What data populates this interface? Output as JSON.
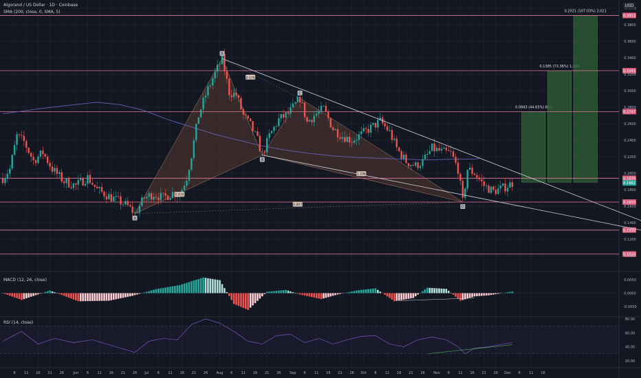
{
  "header": {
    "symbol": "Algorand / US Dollar · 1D · Coinbase",
    "sma": "SMA (200, close, 0, SMA, 5)",
    "currency": "USD"
  },
  "colors": {
    "background": "#131722",
    "candle_up": "#26a69a",
    "candle_down": "#ef5350",
    "level_line": "#e07a9a",
    "level_badge": "#d95f7e",
    "sma_line": "#6a5fb5",
    "pattern_fill": "#7a4a3a",
    "target_box": "#2e5a35",
    "macd_up": "#26a69a",
    "macd_down": "#ef5350",
    "macd_up_light": "#b2dfdb",
    "macd_down_light": "#ffcdd2",
    "rsi_line": "#7e57c2",
    "current_price_badge": "#26a69a"
  },
  "chart_data": [
    {
      "type": "candlestick",
      "pane": "price",
      "y_axis_ticks": [
        "0.4000",
        "0.3800",
        "0.3600",
        "0.3400",
        "0.3200",
        "0.3000",
        "0.2800",
        "0.2600",
        "0.2400",
        "0.2200",
        "0.2000",
        "0.1800",
        "0.1600",
        "0.1400",
        "0.1200",
        "0.1000"
      ],
      "ylim": [
        0.085,
        0.41
      ],
      "price_levels": [
        {
          "label": "0.3913",
          "value": 0.3913
        },
        {
          "label": "0.3243",
          "value": 0.3243
        },
        {
          "label": "0.2747",
          "value": 0.2747
        },
        {
          "label": "0.1939",
          "value": 0.1939
        },
        {
          "label": "0.1650",
          "value": 0.165
        },
        {
          "label": "0.1310",
          "value": 0.131
        },
        {
          "label": "0.1020",
          "value": 0.102
        }
      ],
      "current_price": "0.1882",
      "current_price_value": 0.1882,
      "harmonic_points": [
        {
          "label": "X",
          "day": 56,
          "price": 0.151
        },
        {
          "label": "A",
          "day": 93,
          "price": 0.339
        },
        {
          "label": "B",
          "day": 110,
          "price": 0.222
        },
        {
          "label": "C",
          "day": 126,
          "price": 0.291
        },
        {
          "label": "D",
          "day": 195,
          "price": 0.165
        }
      ],
      "ratio_labels": [
        {
          "label": "0.616",
          "day": 75,
          "price": 0.174
        },
        {
          "label": "0.576",
          "day": 105,
          "price": 0.316
        },
        {
          "label": "1.296",
          "day": 152,
          "price": 0.199
        },
        {
          "label": "0.807",
          "day": 125,
          "price": 0.162
        }
      ],
      "targets": [
        {
          "label": "0.0843 (44.65%) 843",
          "start_day": 220,
          "end_day": 230,
          "top": 0.2747,
          "bottom": 0.189
        },
        {
          "label": "0.1385 (73.36%) 1,385",
          "start_day": 231,
          "end_day": 241,
          "top": 0.3243,
          "bottom": 0.189
        },
        {
          "label": "0.2021 (107.03%) 2,021",
          "start_day": 242,
          "end_day": 252,
          "top": 0.3913,
          "bottom": 0.189
        }
      ],
      "trendlines": [
        {
          "from": {
            "day": 93,
            "price": 0.339
          },
          "to": {
            "day": 272,
            "price": 0.141
          }
        },
        {
          "from": {
            "day": 110,
            "price": 0.222
          },
          "to": {
            "day": 274,
            "price": 0.129
          }
        }
      ]
    },
    {
      "type": "histogram",
      "pane": "macd",
      "title": "MACD (12, 26, close)",
      "y_axis_ticks": [
        "0.0050",
        "0.0000",
        "-0.0050"
      ],
      "ylim": [
        -0.0085,
        0.0075
      ]
    },
    {
      "type": "line",
      "pane": "rsi",
      "title": "RSI (14, close)",
      "y_axis_ticks": [
        "80.00",
        "60.00",
        "40.00",
        "20.00"
      ],
      "ylim": [
        13,
        82
      ],
      "bands": [
        70,
        30
      ]
    }
  ],
  "x_axis": {
    "ticks": [
      {
        "label": "6",
        "day": 5
      },
      {
        "label": "11",
        "day": 10
      },
      {
        "label": "16",
        "day": 15
      },
      {
        "label": "21",
        "day": 20
      },
      {
        "label": "26",
        "day": 25
      },
      {
        "label": "Jun",
        "day": 31
      },
      {
        "label": "6",
        "day": 36
      },
      {
        "label": "11",
        "day": 41
      },
      {
        "label": "16",
        "day": 46
      },
      {
        "label": "21",
        "day": 51
      },
      {
        "label": "26",
        "day": 56
      },
      {
        "label": "Jul",
        "day": 61
      },
      {
        "label": "6",
        "day": 66
      },
      {
        "label": "11",
        "day": 71
      },
      {
        "label": "16",
        "day": 76
      },
      {
        "label": "21",
        "day": 81
      },
      {
        "label": "26",
        "day": 86
      },
      {
        "label": "Aug",
        "day": 92
      },
      {
        "label": "6",
        "day": 97
      },
      {
        "label": "11",
        "day": 102
      },
      {
        "label": "16",
        "day": 107
      },
      {
        "label": "21",
        "day": 112
      },
      {
        "label": "26",
        "day": 117
      },
      {
        "label": "Sep",
        "day": 123
      },
      {
        "label": "6",
        "day": 128
      },
      {
        "label": "11",
        "day": 133
      },
      {
        "label": "16",
        "day": 138
      },
      {
        "label": "21",
        "day": 143
      },
      {
        "label": "26",
        "day": 148
      },
      {
        "label": "Oct",
        "day": 153
      },
      {
        "label": "6",
        "day": 158
      },
      {
        "label": "11",
        "day": 163
      },
      {
        "label": "16",
        "day": 168
      },
      {
        "label": "21",
        "day": 173
      },
      {
        "label": "26",
        "day": 178
      },
      {
        "label": "Nov",
        "day": 184
      },
      {
        "label": "6",
        "day": 189
      },
      {
        "label": "11",
        "day": 194
      },
      {
        "label": "16",
        "day": 199
      },
      {
        "label": "21",
        "day": 204
      },
      {
        "label": "26",
        "day": 209
      },
      {
        "label": "Dec",
        "day": 214
      },
      {
        "label": "6",
        "day": 219
      },
      {
        "label": "11",
        "day": 224
      },
      {
        "label": "16",
        "day": 229
      }
    ]
  }
}
